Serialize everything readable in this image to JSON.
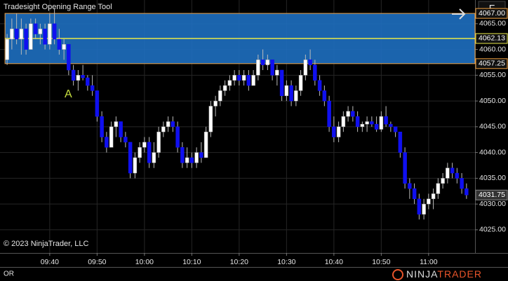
{
  "title": "Tradesight Opening Range Tool",
  "copyright": "© 2023 NinjaTrader, LLC",
  "footer_label": "OR",
  "button": "F",
  "logo": [
    "NINJA",
    "TRADER"
  ],
  "annotation": "A",
  "chart_data": {
    "type": "candlestick",
    "up_color": "#ffffff",
    "down_color": "#1010f0",
    "band_color": "#1e6fc0",
    "band_border": "#f0a040",
    "mid_color": "#e8e84a",
    "grid": true,
    "xlim": [
      569.5,
      669.8
    ],
    "ylim": [
      4020.5,
      4069.6
    ],
    "xticks": [
      {
        "value": 580,
        "label": "09:40"
      },
      {
        "value": 590,
        "label": "09:50"
      },
      {
        "value": 600,
        "label": "10:00"
      },
      {
        "value": 610,
        "label": "10:10"
      },
      {
        "value": 620,
        "label": "10:20"
      },
      {
        "value": 630,
        "label": "10:30"
      },
      {
        "value": 640,
        "label": "10:40"
      },
      {
        "value": 650,
        "label": "10:50"
      },
      {
        "value": 660,
        "label": "11:00"
      }
    ],
    "yticks": [
      {
        "value": 4025,
        "label": "4025.00"
      },
      {
        "value": 4030,
        "label": "4030.00"
      },
      {
        "value": 4035,
        "label": "4035.00"
      },
      {
        "value": 4040,
        "label": "4040.00"
      },
      {
        "value": 4045,
        "label": "4045.00"
      },
      {
        "value": 4050,
        "label": "4050.00"
      },
      {
        "value": 4055,
        "label": "4055.00"
      },
      {
        "value": 4060,
        "label": "4060.00"
      },
      {
        "value": 4065,
        "label": "4065.00"
      }
    ],
    "range_high": {
      "value": 4067,
      "label": "4067.00"
    },
    "range_mid": 4062.13,
    "range_low": 4057.25,
    "last_price": 4031.75,
    "x": [
      571,
      572,
      573,
      574,
      575,
      576,
      577,
      578,
      579,
      580,
      581,
      582,
      583,
      584,
      585,
      586,
      587,
      588,
      589,
      590,
      591,
      592,
      593,
      594,
      595,
      596,
      597,
      598,
      599,
      600,
      601,
      602,
      603,
      604,
      605,
      606,
      607,
      608,
      609,
      610,
      611,
      612,
      613,
      614,
      615,
      616,
      617,
      618,
      619,
      620,
      621,
      622,
      623,
      624,
      625,
      626,
      627,
      628,
      629,
      630,
      631,
      632,
      633,
      634,
      635,
      636,
      637,
      638,
      639,
      640,
      641,
      642,
      643,
      644,
      645,
      646,
      647,
      648,
      649,
      650,
      651,
      652,
      653,
      654,
      655,
      656,
      657,
      658,
      659,
      660,
      661,
      662,
      663,
      664,
      665,
      666,
      667,
      668
    ],
    "ohlc": [
      [
        4058,
        4063,
        4057,
        4062
      ],
      [
        4062,
        4066,
        4060,
        4064
      ],
      [
        4064,
        4067,
        4061,
        4062
      ],
      [
        4062,
        4066,
        4059,
        4064
      ],
      [
        4064,
        4065,
        4059,
        4060
      ],
      [
        4060,
        4066,
        4060,
        4065
      ],
      [
        4065,
        4066,
        4062,
        4063
      ],
      [
        4063,
        4065,
        4061,
        4064
      ],
      [
        4064,
        4065,
        4060,
        4061
      ],
      [
        4061,
        4067,
        4060,
        4065
      ],
      [
        4065,
        4068,
        4061,
        4062
      ],
      [
        4062,
        4064,
        4059,
        4060
      ],
      [
        4060,
        4062,
        4058,
        4061
      ],
      [
        4061,
        4061,
        4055,
        4056
      ],
      [
        4056,
        4057,
        4053,
        4054
      ],
      [
        4054,
        4056,
        4052,
        4055
      ],
      [
        4055,
        4057,
        4054,
        4054.5
      ],
      [
        4054.5,
        4055,
        4052,
        4053
      ],
      [
        4053,
        4055,
        4051,
        4052
      ],
      [
        4052,
        4052,
        4046,
        4047
      ],
      [
        4047,
        4048,
        4042,
        4043
      ],
      [
        4043,
        4044,
        4040,
        4041
      ],
      [
        4041,
        4046,
        4041,
        4045
      ],
      [
        4045,
        4047,
        4043,
        4046
      ],
      [
        4046,
        4046,
        4042,
        4043
      ],
      [
        4043,
        4044,
        4041,
        4042
      ],
      [
        4042,
        4042,
        4035,
        4036
      ],
      [
        4036,
        4040,
        4035,
        4039
      ],
      [
        4039,
        4042,
        4038,
        4041
      ],
      [
        4041,
        4043,
        4040,
        4042
      ],
      [
        4042,
        4043,
        4037,
        4038
      ],
      [
        4038,
        4042,
        4037,
        4040
      ],
      [
        4040,
        4045,
        4039,
        4044
      ],
      [
        4044,
        4046,
        4043,
        4045
      ],
      [
        4045,
        4047,
        4044,
        4046
      ],
      [
        4046,
        4047,
        4044,
        4045
      ],
      [
        4045,
        4046,
        4040,
        4041
      ],
      [
        4041,
        4042,
        4037,
        4038
      ],
      [
        4038,
        4041,
        4037,
        4039
      ],
      [
        4039,
        4040,
        4037,
        4038
      ],
      [
        4038,
        4041,
        4037,
        4040
      ],
      [
        4040,
        4042,
        4038,
        4039
      ],
      [
        4039,
        4045,
        4039,
        4044
      ],
      [
        4044,
        4050,
        4043,
        4049
      ],
      [
        4049,
        4051,
        4047,
        4050
      ],
      [
        4050,
        4053,
        4049,
        4052
      ],
      [
        4052,
        4054,
        4051,
        4053
      ],
      [
        4053,
        4055,
        4052,
        4054
      ],
      [
        4054,
        4056,
        4053,
        4055
      ],
      [
        4055,
        4056,
        4053,
        4054
      ],
      [
        4054,
        4056,
        4053,
        4055
      ],
      [
        4055,
        4056,
        4052,
        4053
      ],
      [
        4053,
        4056,
        4053,
        4055
      ],
      [
        4055,
        4059,
        4054,
        4058
      ],
      [
        4058,
        4060,
        4056,
        4057
      ],
      [
        4057,
        4059,
        4056,
        4058
      ],
      [
        4058,
        4058,
        4054,
        4055
      ],
      [
        4055,
        4057,
        4053,
        4056
      ],
      [
        4056,
        4056,
        4050,
        4051
      ],
      [
        4051,
        4054,
        4050,
        4053
      ],
      [
        4053,
        4054,
        4049,
        4050
      ],
      [
        4050,
        4053,
        4049,
        4052
      ],
      [
        4052,
        4056,
        4051,
        4055
      ],
      [
        4055,
        4059,
        4054,
        4058
      ],
      [
        4058,
        4060,
        4056,
        4057
      ],
      [
        4057,
        4058,
        4053,
        4054
      ],
      [
        4054,
        4055,
        4051,
        4052
      ],
      [
        4052,
        4053,
        4049,
        4050
      ],
      [
        4050,
        4051,
        4044,
        4045
      ],
      [
        4045,
        4047,
        4042,
        4043
      ],
      [
        4043,
        4046,
        4042,
        4045
      ],
      [
        4045,
        4048,
        4044,
        4047
      ],
      [
        4047,
        4049,
        4046,
        4048
      ],
      [
        4048,
        4049,
        4046,
        4047
      ],
      [
        4047,
        4048,
        4044,
        4045
      ],
      [
        4045,
        4046,
        4044,
        4045.5
      ],
      [
        4045.5,
        4047,
        4044,
        4046
      ],
      [
        4046,
        4047,
        4045,
        4045.5
      ],
      [
        4045.5,
        4047,
        4044,
        4044.5
      ],
      [
        4044.5,
        4048,
        4044,
        4047
      ],
      [
        4047,
        4049,
        4045,
        4045.5
      ],
      [
        4045.5,
        4046,
        4044,
        4045
      ],
      [
        4045,
        4045,
        4043,
        4044
      ],
      [
        4044,
        4044,
        4039,
        4040
      ],
      [
        4040,
        4041,
        4033,
        4034
      ],
      [
        4034,
        4035,
        4031,
        4033
      ],
      [
        4033,
        4034,
        4030,
        4031
      ],
      [
        4031,
        4032,
        4027,
        4028
      ],
      [
        4028,
        4031,
        4027,
        4030
      ],
      [
        4030,
        4032,
        4029,
        4031
      ],
      [
        4031,
        4033,
        4029,
        4032
      ],
      [
        4032,
        4035,
        4031,
        4034
      ],
      [
        4034,
        4036,
        4033,
        4035
      ],
      [
        4035,
        4038,
        4034,
        4037
      ],
      [
        4037,
        4038,
        4035,
        4036
      ],
      [
        4036,
        4037,
        4034,
        4035
      ],
      [
        4035,
        4036,
        4032,
        4033
      ],
      [
        4033,
        4034,
        4031,
        4031.75
      ]
    ]
  }
}
